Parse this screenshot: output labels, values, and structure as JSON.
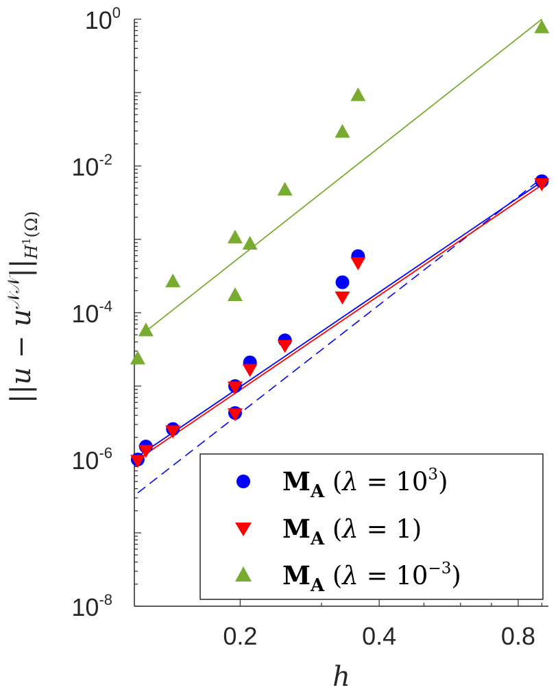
{
  "chart_data": {
    "type": "scatter",
    "x_scale": "log",
    "y_scale": "log",
    "xlabel": "h",
    "ylabel_parts": {
      "norm_open": "||",
      "u": "u",
      "minus": " − ",
      "u2": "u",
      "sup": "𝒩𝒩",
      "norm_close": "||",
      "sub": "H",
      "sub_sup": "1",
      "sub_tail": "(Ω)"
    },
    "xlim": [
      0.118,
      0.93
    ],
    "ylim": [
      1e-08,
      1
    ],
    "xticks": [
      {
        "value": 0.2,
        "label": "0.2"
      },
      {
        "value": 0.4,
        "label": "0.4"
      },
      {
        "value": 0.8,
        "label": "0.8"
      }
    ],
    "yticks": [
      {
        "value": 1e-08,
        "base": "10",
        "exp": "-8"
      },
      {
        "value": 1e-06,
        "base": "10",
        "exp": "-6"
      },
      {
        "value": 0.0001,
        "base": "10",
        "exp": "-4"
      },
      {
        "value": 0.01,
        "base": "10",
        "exp": "-2"
      },
      {
        "value": 1,
        "base": "10",
        "exp": "0"
      }
    ],
    "series": [
      {
        "name": "λ = 10^3",
        "legend": {
          "bold": "M",
          "sub": "A",
          "open": " (",
          "lambda": "λ",
          "eq": " = 10",
          "sup": "3",
          "close": ")"
        },
        "marker": "circle",
        "color": "#0000ff",
        "points": [
          {
            "x": 0.12,
            "y": 1e-06
          },
          {
            "x": 0.125,
            "y": 1.5e-06
          },
          {
            "x": 0.143,
            "y": 2.6e-06
          },
          {
            "x": 0.195,
            "y": 1e-05
          },
          {
            "x": 0.195,
            "y": 4.3e-06
          },
          {
            "x": 0.21,
            "y": 2.1e-05
          },
          {
            "x": 0.25,
            "y": 4.2e-05
          },
          {
            "x": 0.333,
            "y": 0.00026
          },
          {
            "x": 0.36,
            "y": 0.00059
          },
          {
            "x": 0.9,
            "y": 0.0062
          }
        ],
        "fit": {
          "x": [
            0.12,
            0.9
          ],
          "y": [
            1.1e-06,
            0.0061
          ]
        }
      },
      {
        "name": "λ = 1",
        "legend": {
          "bold": "M",
          "sub": "A",
          "open": " (",
          "lambda": "λ",
          "eq": " = 1",
          "sup": "",
          "close": ")"
        },
        "marker": "triangle-down",
        "color": "#ff0000",
        "points": [
          {
            "x": 0.12,
            "y": 9.5e-07
          },
          {
            "x": 0.125,
            "y": 1.3e-06
          },
          {
            "x": 0.143,
            "y": 2.4e-06
          },
          {
            "x": 0.195,
            "y": 9.5e-06
          },
          {
            "x": 0.195,
            "y": 4.1e-06
          },
          {
            "x": 0.21,
            "y": 1.65e-05
          },
          {
            "x": 0.25,
            "y": 3.5e-05
          },
          {
            "x": 0.333,
            "y": 0.00016
          },
          {
            "x": 0.36,
            "y": 0.00047
          },
          {
            "x": 0.9,
            "y": 0.0056
          }
        ],
        "fit": {
          "x": [
            0.12,
            0.9
          ],
          "y": [
            1e-06,
            0.0055
          ]
        }
      },
      {
        "name": "λ = 10^-3",
        "legend": {
          "bold": "M",
          "sub": "A",
          "open": " (",
          "lambda": "λ",
          "eq": " = 10",
          "sup": "−3",
          "close": ")"
        },
        "marker": "triangle-up",
        "color": "#77ac30",
        "points": [
          {
            "x": 0.12,
            "y": 2.4e-05
          },
          {
            "x": 0.125,
            "y": 5.8e-05
          },
          {
            "x": 0.143,
            "y": 0.00027
          },
          {
            "x": 0.195,
            "y": 0.00107
          },
          {
            "x": 0.195,
            "y": 0.000175
          },
          {
            "x": 0.21,
            "y": 0.00088
          },
          {
            "x": 0.25,
            "y": 0.0048
          },
          {
            "x": 0.333,
            "y": 0.0295
          },
          {
            "x": 0.36,
            "y": 0.093
          },
          {
            "x": 0.9,
            "y": 0.78
          }
        ],
        "fit": {
          "x": [
            0.125,
            0.9
          ],
          "y": [
            5.6e-05,
            1.0
          ]
        }
      }
    ],
    "reference_line": {
      "style": "dashed",
      "color": "#0000ff",
      "x": [
        0.12,
        0.9
      ],
      "y": [
        3.5e-07,
        0.0068
      ]
    },
    "legend_position": "bottom-right"
  }
}
